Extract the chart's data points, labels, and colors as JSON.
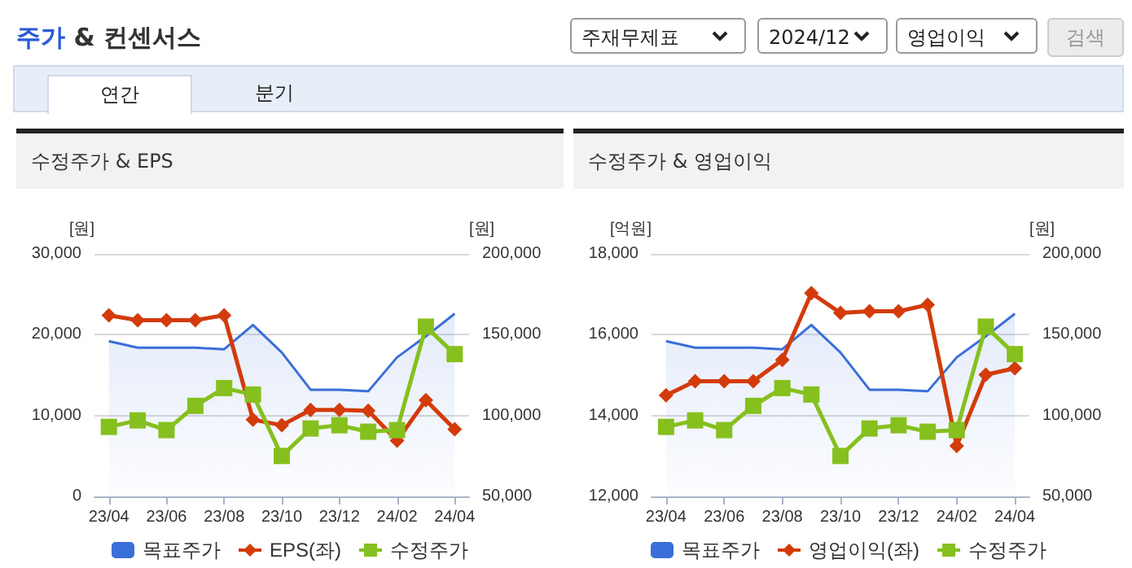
{
  "chart_data": [
    {
      "type": "line",
      "title": "수정주가 & EPS",
      "annotations": [
        "주가 & 컨센서스",
        "주재무제표",
        "2024/12",
        "영업이익",
        "검색",
        "연간",
        "분기"
      ],
      "ylabel": "[원]",
      "y2label": "[원]",
      "categories": [
        "23/04",
        null,
        "23/06",
        null,
        "23/08",
        null,
        "23/10",
        null,
        "23/12",
        null,
        "24/02",
        null,
        "24/04"
      ],
      "series": [
        {
          "name": "목표주가",
          "type": "area",
          "axis": "y2",
          "color": "#3a6fd9",
          "marker": "none",
          "values": [
            146000,
            142000,
            142000,
            142000,
            141000,
            156000,
            139000,
            116000,
            116000,
            115000,
            136000,
            149000,
            163000
          ]
        },
        {
          "name": "EPS(좌)",
          "type": "line",
          "color": "#d33b0b",
          "marker": "diamond",
          "values": [
            22400,
            21800,
            21800,
            21800,
            22400,
            9500,
            8800,
            10700,
            10700,
            10600,
            6900,
            11900,
            8300
          ]
        },
        {
          "name": "수정주가",
          "type": "line",
          "axis": "y2",
          "color": "#86c01e",
          "marker": "square",
          "values": [
            93000,
            97000,
            91000,
            106000,
            117000,
            113000,
            75000,
            92000,
            94000,
            90000,
            91000,
            155000,
            138000
          ]
        }
      ],
      "ylim": [
        0,
        30000
      ],
      "yticks": [
        0,
        {
          "value": 10000,
          "label": "10,000"
        },
        {
          "value": 20000,
          "label": "20,000"
        },
        {
          "value": 30000,
          "label": "30,000"
        }
      ],
      "y2lim": [
        50000,
        200000
      ],
      "y2ticks": [
        {
          "value": 50000,
          "label": "50,000"
        },
        {
          "value": 100000,
          "label": "100,000"
        },
        {
          "value": 150000,
          "label": "150,000"
        },
        {
          "value": 200000,
          "label": "200,000"
        }
      ],
      "grid": "y",
      "legend": "bottom"
    },
    {
      "type": "line",
      "title": "수정주가 & 영업이익",
      "ylabel": "[억원]",
      "y2label": "[원]",
      "categories": [
        "23/04",
        null,
        "23/06",
        null,
        "23/08",
        null,
        "23/10",
        null,
        "23/12",
        null,
        "24/02",
        null,
        "24/04"
      ],
      "series": [
        {
          "name": "목표주가",
          "type": "area",
          "axis": "y2",
          "color": "#3a6fd9",
          "marker": "none",
          "values": [
            146000,
            142000,
            142000,
            142000,
            141000,
            156000,
            139000,
            116000,
            116000,
            115000,
            136000,
            149000,
            163000
          ]
        },
        {
          "name": "영업이익(좌)",
          "type": "line",
          "color": "#d33b0b",
          "marker": "diamond",
          "values": [
            14500,
            14850,
            14850,
            14850,
            15380,
            17030,
            16540,
            16580,
            16580,
            16740,
            13250,
            15010,
            15170
          ]
        },
        {
          "name": "수정주가",
          "type": "line",
          "axis": "y2",
          "color": "#86c01e",
          "marker": "square",
          "values": [
            93000,
            97000,
            91000,
            106000,
            117000,
            113000,
            75000,
            92000,
            94000,
            90000,
            91000,
            155000,
            138000
          ]
        }
      ],
      "ylim": [
        12000,
        18000
      ],
      "yticks": [
        {
          "value": 12000,
          "label": "12,000"
        },
        {
          "value": 14000,
          "label": "14,000"
        },
        {
          "value": 16000,
          "label": "16,000"
        },
        {
          "value": 18000,
          "label": "18,000"
        }
      ],
      "y2lim": [
        50000,
        200000
      ],
      "y2ticks": [
        {
          "value": 50000,
          "label": "50,000"
        },
        {
          "value": 100000,
          "label": "100,000"
        },
        {
          "value": 150000,
          "label": "150,000"
        },
        {
          "value": 200000,
          "label": "200,000"
        }
      ],
      "grid": "y",
      "legend": "bottom"
    }
  ]
}
